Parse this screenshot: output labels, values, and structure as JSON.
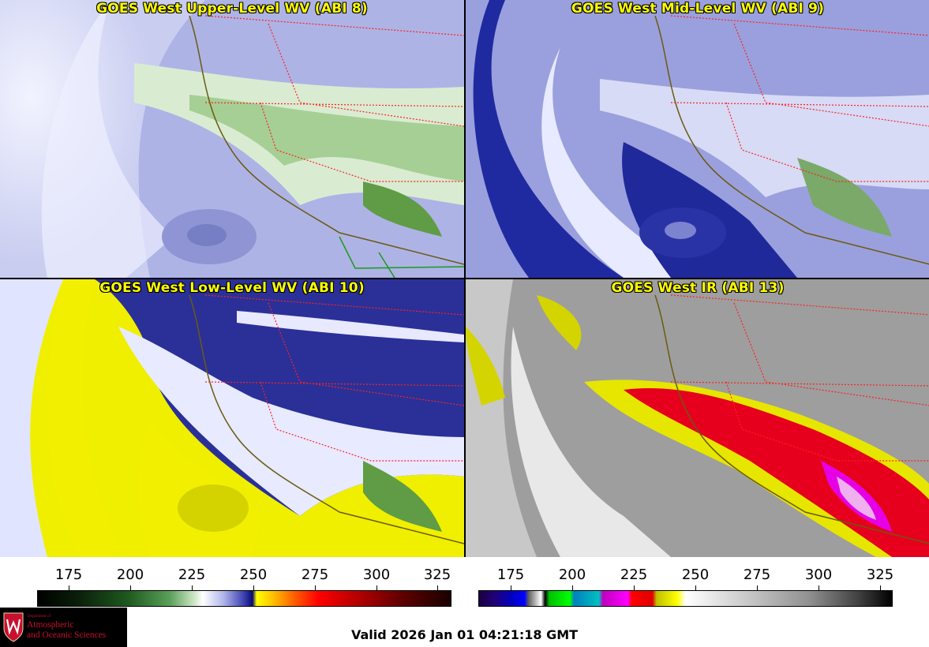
{
  "panels": [
    {
      "title": "GOES West Upper-Level WV (ABI 8)"
    },
    {
      "title": "GOES West Mid-Level WV (ABI 9)"
    },
    {
      "title": "GOES West Low-Level WV (ABI 10)"
    },
    {
      "title": "GOES West IR (ABI 13)"
    }
  ],
  "wv_colorbar": {
    "ticks": [
      "175",
      "200",
      "225",
      "250",
      "275",
      "300",
      "325"
    ]
  },
  "ir_colorbar": {
    "ticks": [
      "175",
      "200",
      "225",
      "250",
      "275",
      "300",
      "325"
    ]
  },
  "logo": {
    "dept_line": "Department of",
    "name_line1": "Atmospheric",
    "name_line2": "and Oceanic Sciences"
  },
  "valid_time": "Valid 2026 Jan 01 04:21:18 GMT",
  "colors": {
    "title_yellow": "#ffff00",
    "border_red": "#ff2020",
    "coast_olive": "#6b5a10"
  }
}
